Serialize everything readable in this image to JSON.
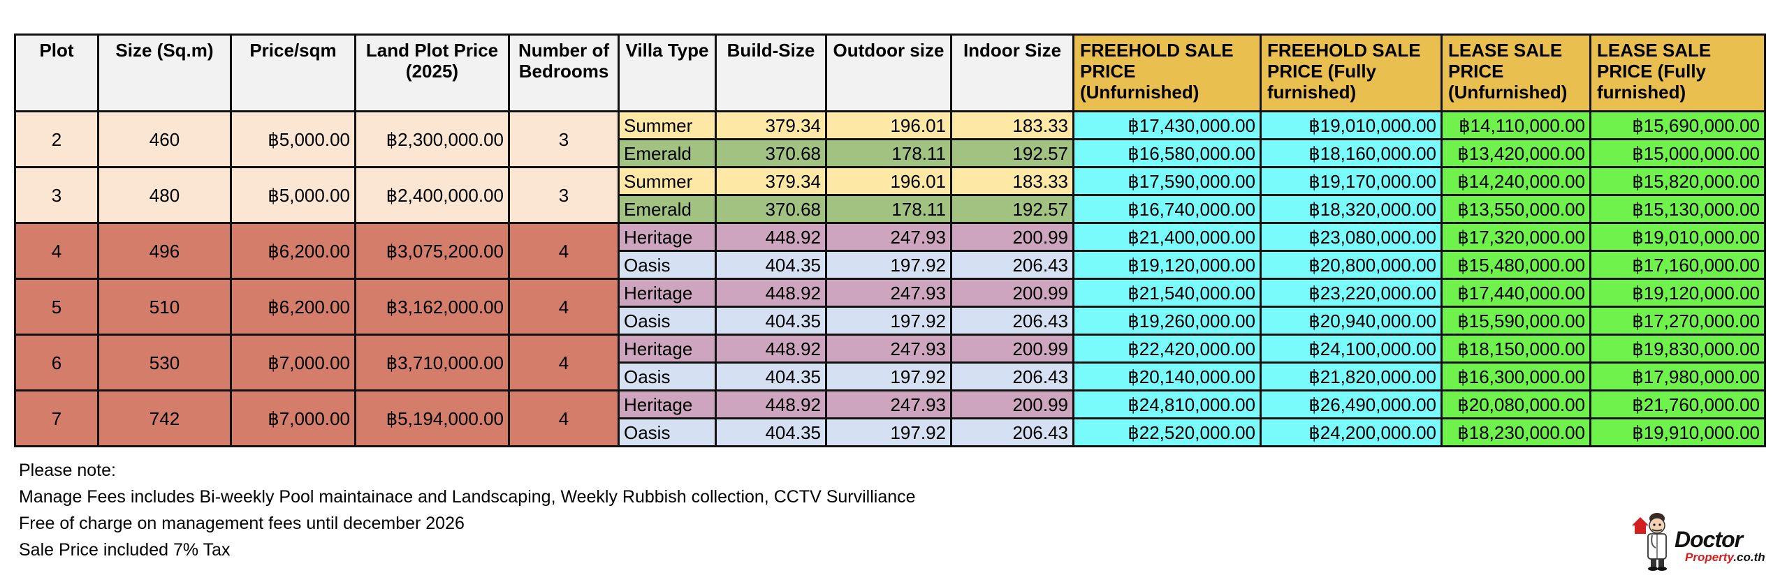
{
  "table": {
    "headers": {
      "plot": "Plot",
      "size": "Size (Sq.m)",
      "price_sqm": "Price/sqm",
      "land_plot_price": "Land Plot Price (2025)",
      "bedrooms": "Number of Bedrooms",
      "villa_type": "Villa Type",
      "build_size": "Build-Size",
      "outdoor_size": "Outdoor size",
      "indoor_size": "Indoor Size",
      "freehold_unfurnished": "FREEHOLD SALE PRICE (Unfurnished)",
      "freehold_furnished": "FREEHOLD SALE PRICE (Fully furnished)",
      "lease_unfurnished": "LEASE SALE PRICE (Unfurnished)",
      "lease_furnished": "LEASE SALE PRICE (Fully furnished)"
    },
    "plots": [
      {
        "plot": "2",
        "size": "460",
        "price_sqm": "฿5,000.00",
        "land_price": "฿2,300,000.00",
        "bedrooms": "3",
        "villas": [
          {
            "type": "Summer",
            "build": "379.34",
            "outdoor": "196.01",
            "indoor": "183.33",
            "fh_unf": "฿17,430,000.00",
            "fh_fur": "฿19,010,000.00",
            "ls_unf": "฿14,110,000.00",
            "ls_fur": "฿15,690,000.00"
          },
          {
            "type": "Emerald",
            "build": "370.68",
            "outdoor": "178.11",
            "indoor": "192.57",
            "fh_unf": "฿16,580,000.00",
            "fh_fur": "฿18,160,000.00",
            "ls_unf": "฿13,420,000.00",
            "ls_fur": "฿15,000,000.00"
          }
        ]
      },
      {
        "plot": "3",
        "size": "480",
        "price_sqm": "฿5,000.00",
        "land_price": "฿2,400,000.00",
        "bedrooms": "3",
        "villas": [
          {
            "type": "Summer",
            "build": "379.34",
            "outdoor": "196.01",
            "indoor": "183.33",
            "fh_unf": "฿17,590,000.00",
            "fh_fur": "฿19,170,000.00",
            "ls_unf": "฿14,240,000.00",
            "ls_fur": "฿15,820,000.00"
          },
          {
            "type": "Emerald",
            "build": "370.68",
            "outdoor": "178.11",
            "indoor": "192.57",
            "fh_unf": "฿16,740,000.00",
            "fh_fur": "฿18,320,000.00",
            "ls_unf": "฿13,550,000.00",
            "ls_fur": "฿15,130,000.00"
          }
        ]
      },
      {
        "plot": "4",
        "size": "496",
        "price_sqm": "฿6,200.00",
        "land_price": "฿3,075,200.00",
        "bedrooms": "4",
        "villas": [
          {
            "type": "Heritage",
            "build": "448.92",
            "outdoor": "247.93",
            "indoor": "200.99",
            "fh_unf": "฿21,400,000.00",
            "fh_fur": "฿23,080,000.00",
            "ls_unf": "฿17,320,000.00",
            "ls_fur": "฿19,010,000.00"
          },
          {
            "type": "Oasis",
            "build": "404.35",
            "outdoor": "197.92",
            "indoor": "206.43",
            "fh_unf": "฿19,120,000.00",
            "fh_fur": "฿20,800,000.00",
            "ls_unf": "฿15,480,000.00",
            "ls_fur": "฿17,160,000.00"
          }
        ]
      },
      {
        "plot": "5",
        "size": "510",
        "price_sqm": "฿6,200.00",
        "land_price": "฿3,162,000.00",
        "bedrooms": "4",
        "villas": [
          {
            "type": "Heritage",
            "build": "448.92",
            "outdoor": "247.93",
            "indoor": "200.99",
            "fh_unf": "฿21,540,000.00",
            "fh_fur": "฿23,220,000.00",
            "ls_unf": "฿17,440,000.00",
            "ls_fur": "฿19,120,000.00"
          },
          {
            "type": "Oasis",
            "build": "404.35",
            "outdoor": "197.92",
            "indoor": "206.43",
            "fh_unf": "฿19,260,000.00",
            "fh_fur": "฿20,940,000.00",
            "ls_unf": "฿15,590,000.00",
            "ls_fur": "฿17,270,000.00"
          }
        ]
      },
      {
        "plot": "6",
        "size": "530",
        "price_sqm": "฿7,000.00",
        "land_price": "฿3,710,000.00",
        "bedrooms": "4",
        "villas": [
          {
            "type": "Heritage",
            "build": "448.92",
            "outdoor": "247.93",
            "indoor": "200.99",
            "fh_unf": "฿22,420,000.00",
            "fh_fur": "฿24,100,000.00",
            "ls_unf": "฿18,150,000.00",
            "ls_fur": "฿19,830,000.00"
          },
          {
            "type": "Oasis",
            "build": "404.35",
            "outdoor": "197.92",
            "indoor": "206.43",
            "fh_unf": "฿20,140,000.00",
            "fh_fur": "฿21,820,000.00",
            "ls_unf": "฿16,300,000.00",
            "ls_fur": "฿17,980,000.00"
          }
        ]
      },
      {
        "plot": "7",
        "size": "742",
        "price_sqm": "฿7,000.00",
        "land_price": "฿5,194,000.00",
        "bedrooms": "4",
        "villas": [
          {
            "type": "Heritage",
            "build": "448.92",
            "outdoor": "247.93",
            "indoor": "200.99",
            "fh_unf": "฿24,810,000.00",
            "fh_fur": "฿26,490,000.00",
            "ls_unf": "฿20,080,000.00",
            "ls_fur": "฿21,760,000.00"
          },
          {
            "type": "Oasis",
            "build": "404.35",
            "outdoor": "197.92",
            "indoor": "206.43",
            "fh_unf": "฿22,520,000.00",
            "fh_fur": "฿24,200,000.00",
            "ls_unf": "฿18,230,000.00",
            "ls_fur": "฿19,910,000.00"
          }
        ]
      }
    ]
  },
  "notes": {
    "heading": "Please note:",
    "lines": [
      "Manage Fees includes Bi-weekly Pool maintainace and Landscaping, Weekly Rubbish collection, CCTV Survilliance",
      "Free of charge on management fees until december 2026",
      "Sale Price included 7% Tax"
    ]
  },
  "logo": {
    "name": "Doctor",
    "sub": "Property",
    "domain": ".co.th"
  },
  "colors": {
    "header_gold": "#e9c04f",
    "plot_3br": "#fbe6d4",
    "plot_4br": "#d47d6b",
    "summer": "#fde9a5",
    "emerald": "#a1c281",
    "heritage": "#cea5be",
    "oasis": "#d5e1f3",
    "freehold": "#79fbfc",
    "lease": "#6ff24b"
  }
}
